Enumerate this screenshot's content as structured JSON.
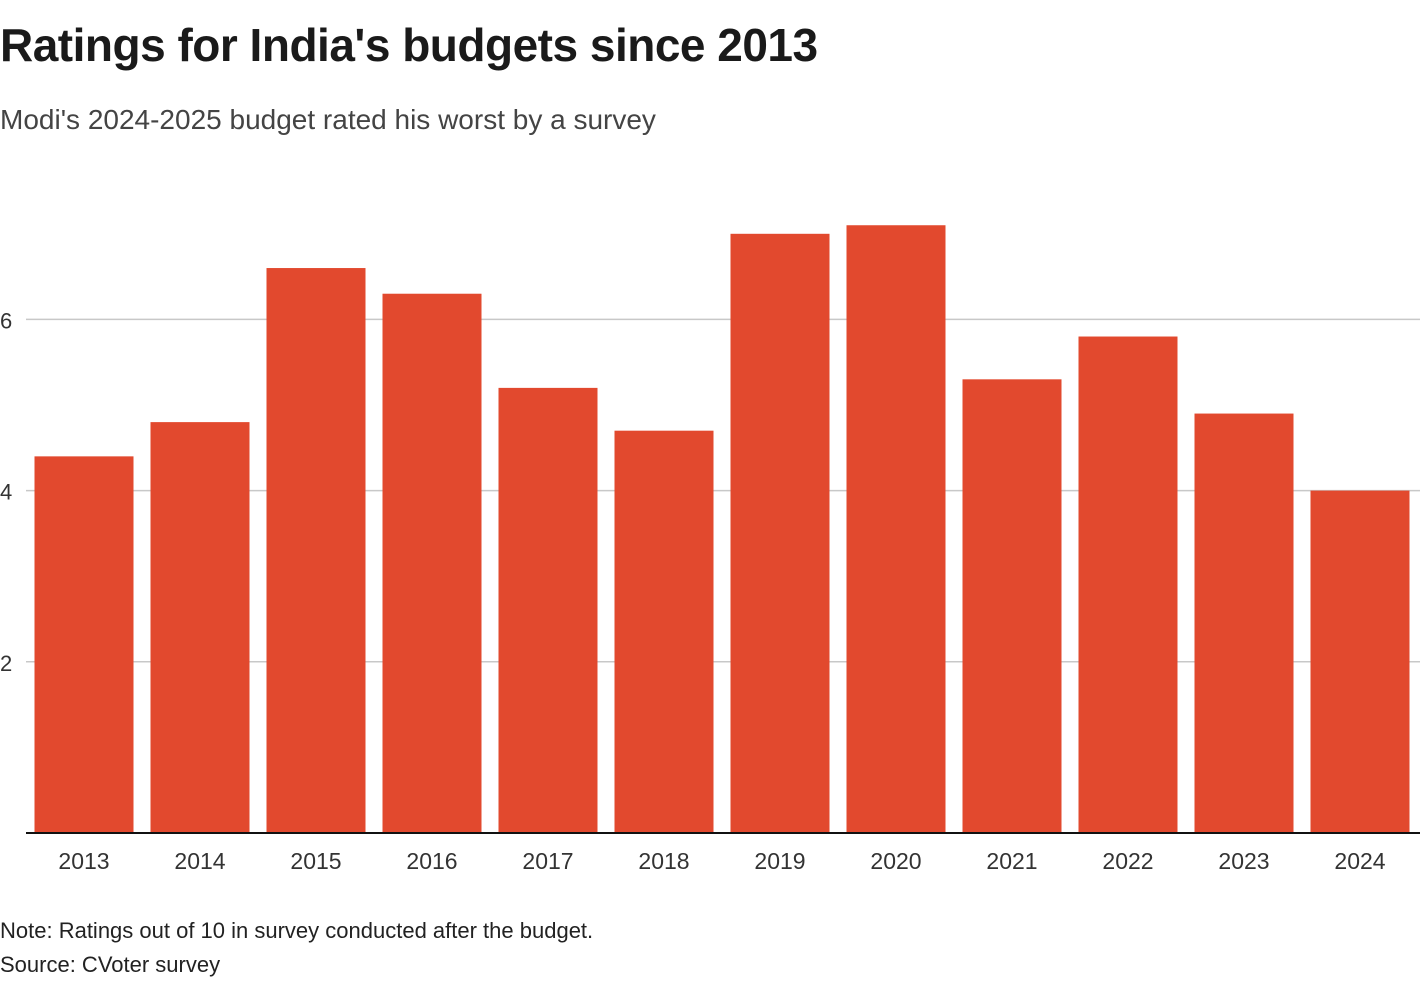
{
  "header": {
    "title": "Ratings for India's budgets since 2013",
    "subtitle": "Modi's 2024-2025 budget rated his worst by a survey"
  },
  "footer": {
    "note": "Note: Ratings out of 10 in survey conducted after the budget.",
    "source": "Source: CVoter survey"
  },
  "colors": {
    "bar": "#E2492E",
    "grid": "#c8c8c8",
    "axis": "#111111",
    "tick_text": "#333333"
  },
  "chart_data": {
    "type": "bar",
    "title": "Ratings for India's budgets since 2013",
    "subtitle": "Modi's 2024-2025 budget rated his worst by a survey",
    "xlabel": "",
    "ylabel": "",
    "categories": [
      "2013",
      "2014",
      "2015",
      "2016",
      "2017",
      "2018",
      "2019",
      "2020",
      "2021",
      "2022",
      "2023",
      "2024"
    ],
    "values": [
      4.4,
      4.8,
      6.6,
      6.3,
      5.2,
      4.7,
      7.0,
      7.1,
      5.3,
      5.8,
      4.9,
      4.0
    ],
    "ylim": [
      0,
      8
    ],
    "yticks": [
      2,
      4,
      6
    ],
    "grid": true,
    "legend": "none"
  }
}
